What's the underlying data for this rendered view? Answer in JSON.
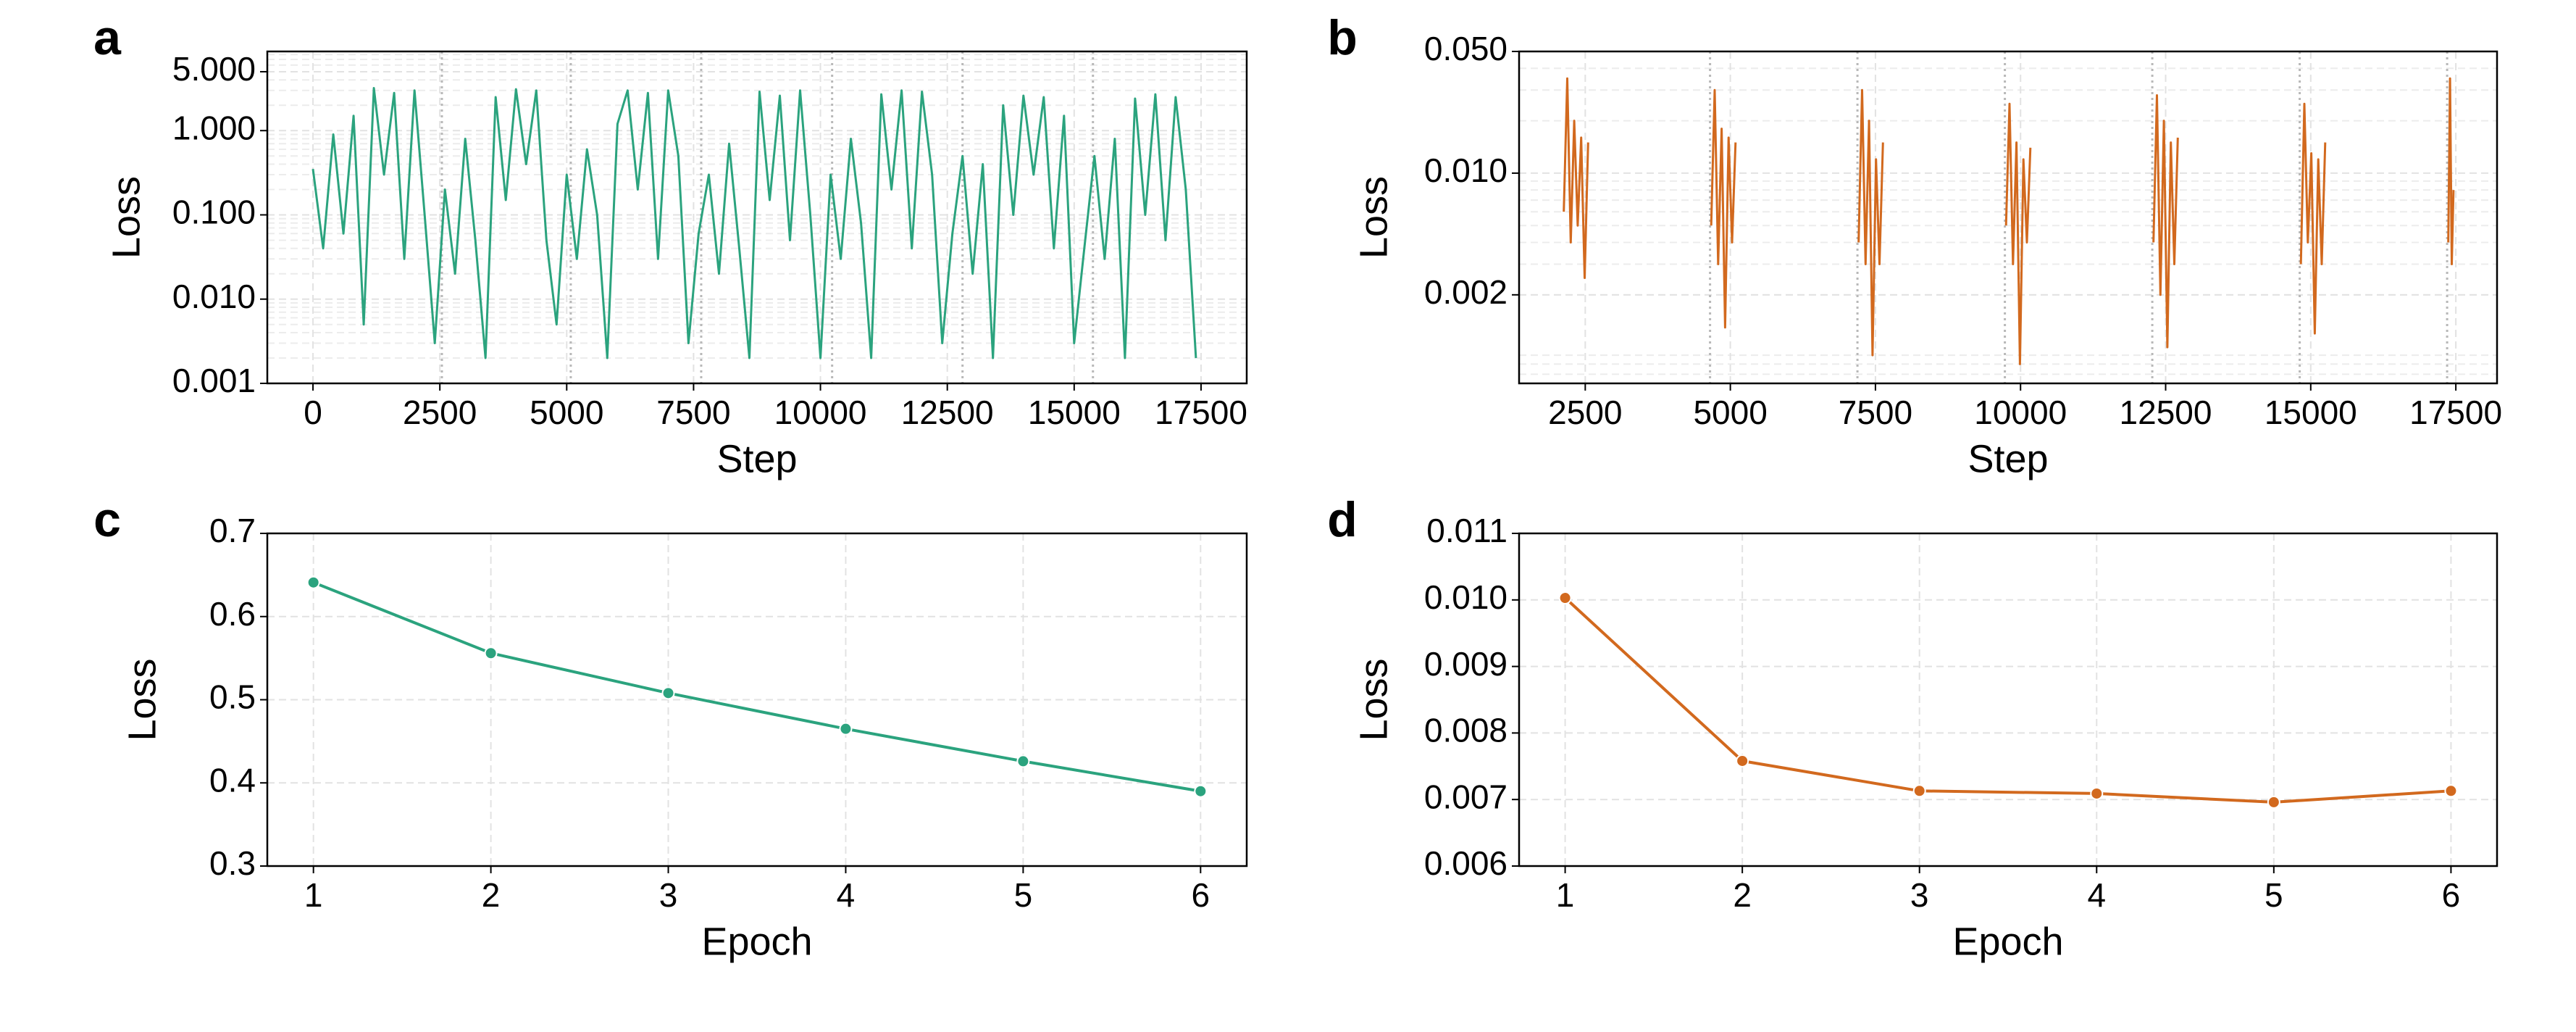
{
  "chart_data": [
    {
      "type": "line",
      "panel_label": "a",
      "xlabel": "Step",
      "ylabel": "Loss",
      "yscale": "log",
      "grid": true,
      "minor_grid": true,
      "color": "#2ba37e",
      "markers": false,
      "xlim": [
        -900,
        18400
      ],
      "xticks": [
        0,
        2500,
        5000,
        7500,
        10000,
        12500,
        15000,
        17500
      ],
      "ylim": [
        0.001,
        8.7
      ],
      "yticks": [
        {
          "value": 0.001,
          "label": "0.001"
        },
        {
          "value": 0.01,
          "label": "0.010"
        },
        {
          "value": 0.1,
          "label": "0.100"
        },
        {
          "value": 1,
          "label": "1.000"
        },
        {
          "value": 5,
          "label": "5.000"
        }
      ],
      "vlines": [
        2540,
        5080,
        7650,
        10230,
        12800,
        15370
      ],
      "x": [
        0,
        200,
        400,
        600,
        800,
        1000,
        1200,
        1400,
        1600,
        1800,
        2000,
        2200,
        2400,
        2600,
        2800,
        3000,
        3200,
        3400,
        3600,
        3800,
        4000,
        4200,
        4400,
        4600,
        4800,
        5000,
        5200,
        5400,
        5600,
        5800,
        6000,
        6200,
        6400,
        6600,
        6800,
        7000,
        7200,
        7400,
        7600,
        7800,
        8000,
        8200,
        8400,
        8600,
        8800,
        9000,
        9200,
        9400,
        9600,
        9800,
        10000,
        10200,
        10400,
        10600,
        10800,
        11000,
        11200,
        11400,
        11600,
        11800,
        12000,
        12200,
        12400,
        12600,
        12800,
        13000,
        13200,
        13400,
        13600,
        13800,
        14000,
        14200,
        14400,
        14600,
        14800,
        15000,
        15200,
        15400,
        15600,
        15800,
        16000,
        16200,
        16400,
        16600,
        16800,
        17000,
        17200,
        17400
      ],
      "values": [
        0.35,
        0.04,
        0.9,
        0.06,
        1.5,
        0.005,
        3.2,
        0.3,
        2.8,
        0.03,
        3.0,
        0.1,
        0.003,
        0.2,
        0.02,
        0.8,
        0.05,
        0.002,
        2.5,
        0.15,
        3.1,
        0.4,
        3.0,
        0.05,
        0.005,
        0.3,
        0.03,
        0.6,
        0.1,
        0.002,
        1.2,
        3.0,
        0.2,
        2.8,
        0.03,
        3.0,
        0.5,
        0.003,
        0.06,
        0.3,
        0.02,
        0.7,
        0.04,
        0.002,
        2.9,
        0.15,
        2.6,
        0.05,
        3.0,
        0.1,
        0.002,
        0.3,
        0.03,
        0.8,
        0.08,
        0.002,
        2.7,
        0.2,
        3.0,
        0.04,
        2.9,
        0.3,
        0.003,
        0.06,
        0.5,
        0.02,
        0.4,
        0.002,
        2.0,
        0.1,
        2.6,
        0.3,
        2.5,
        0.04,
        1.5,
        0.003,
        0.04,
        0.5,
        0.03,
        0.8,
        0.002,
        2.4,
        0.1,
        2.7,
        0.05,
        2.5,
        0.2,
        0.002
      ]
    },
    {
      "type": "line",
      "panel_label": "b",
      "xlabel": "Step",
      "ylabel": "Loss",
      "yscale": "log",
      "grid": true,
      "minor_grid": true,
      "color": "#d2691e",
      "markers": false,
      "xlim": [
        1360,
        18210
      ],
      "xticks": [
        2500,
        5000,
        7500,
        10000,
        12500,
        15000,
        17500
      ],
      "ylim": [
        0.00062,
        0.05
      ],
      "yticks": [
        0.002,
        {
          "value": 0.01,
          "label": "0.010"
        },
        {
          "value": 0.05,
          "label": "0.050"
        }
      ],
      "vlines": [
        4650,
        7190,
        9730,
        12270,
        14810,
        17350
      ],
      "x": [
        2130,
        2190,
        2250,
        2310,
        2370,
        2430,
        2490,
        2550,
        3600,
        4670,
        4730,
        4790,
        4850,
        4910,
        4970,
        5030,
        5090,
        6100,
        7210,
        7270,
        7330,
        7390,
        7450,
        7510,
        7570,
        7630,
        8700,
        9750,
        9810,
        9870,
        9930,
        9990,
        10050,
        10110,
        10170,
        11200,
        12290,
        12350,
        12410,
        12470,
        12530,
        12590,
        12650,
        12710,
        13800,
        14830,
        14890,
        14950,
        15010,
        15070,
        15130,
        15190,
        15250,
        16300,
        17370,
        17400,
        17430,
        17460
      ],
      "values": [
        0.006,
        0.035,
        0.004,
        0.02,
        0.005,
        0.016,
        0.0025,
        0.015,
        null,
        0.005,
        0.03,
        0.003,
        0.018,
        0.0013,
        0.016,
        0.004,
        0.015,
        null,
        0.004,
        0.03,
        0.003,
        0.02,
        0.0009,
        0.012,
        0.003,
        0.015,
        null,
        0.005,
        0.025,
        0.003,
        0.015,
        0.0008,
        0.012,
        0.004,
        0.014,
        null,
        0.004,
        0.028,
        0.002,
        0.02,
        0.001,
        0.015,
        0.003,
        0.016,
        null,
        0.003,
        0.025,
        0.004,
        0.013,
        0.0012,
        0.012,
        0.003,
        0.015,
        null,
        0.004,
        0.035,
        0.003,
        0.008
      ]
    },
    {
      "type": "line",
      "panel_label": "c",
      "xlabel": "Epoch",
      "ylabel": "Loss",
      "yscale": "linear",
      "grid": true,
      "minor_grid": false,
      "color": "#2ba37e",
      "markers": true,
      "xlim": [
        0.74,
        6.26
      ],
      "xticks": [
        1,
        2,
        3,
        4,
        5,
        6
      ],
      "ylim": [
        0.3,
        0.7
      ],
      "yticks": [
        0.3,
        0.4,
        0.5,
        0.6,
        0.7
      ],
      "x": [
        1,
        2,
        3,
        4,
        5,
        6
      ],
      "values": [
        0.641,
        0.556,
        0.508,
        0.465,
        0.426,
        0.39
      ]
    },
    {
      "type": "line",
      "panel_label": "d",
      "xlabel": "Epoch",
      "ylabel": "Loss",
      "yscale": "linear",
      "grid": true,
      "minor_grid": false,
      "color": "#d2691e",
      "markers": true,
      "xlim": [
        0.74,
        6.26
      ],
      "xticks": [
        1,
        2,
        3,
        4,
        5,
        6
      ],
      "ylim": [
        0.006,
        0.011
      ],
      "yticks": [
        0.006,
        0.007,
        0.008,
        0.009,
        {
          "value": 0.01,
          "label": "0.010"
        },
        0.011
      ],
      "x": [
        1,
        2,
        3,
        4,
        5,
        6
      ],
      "values": [
        0.01003,
        0.00758,
        0.00713,
        0.00709,
        0.00696,
        0.00713
      ]
    }
  ]
}
